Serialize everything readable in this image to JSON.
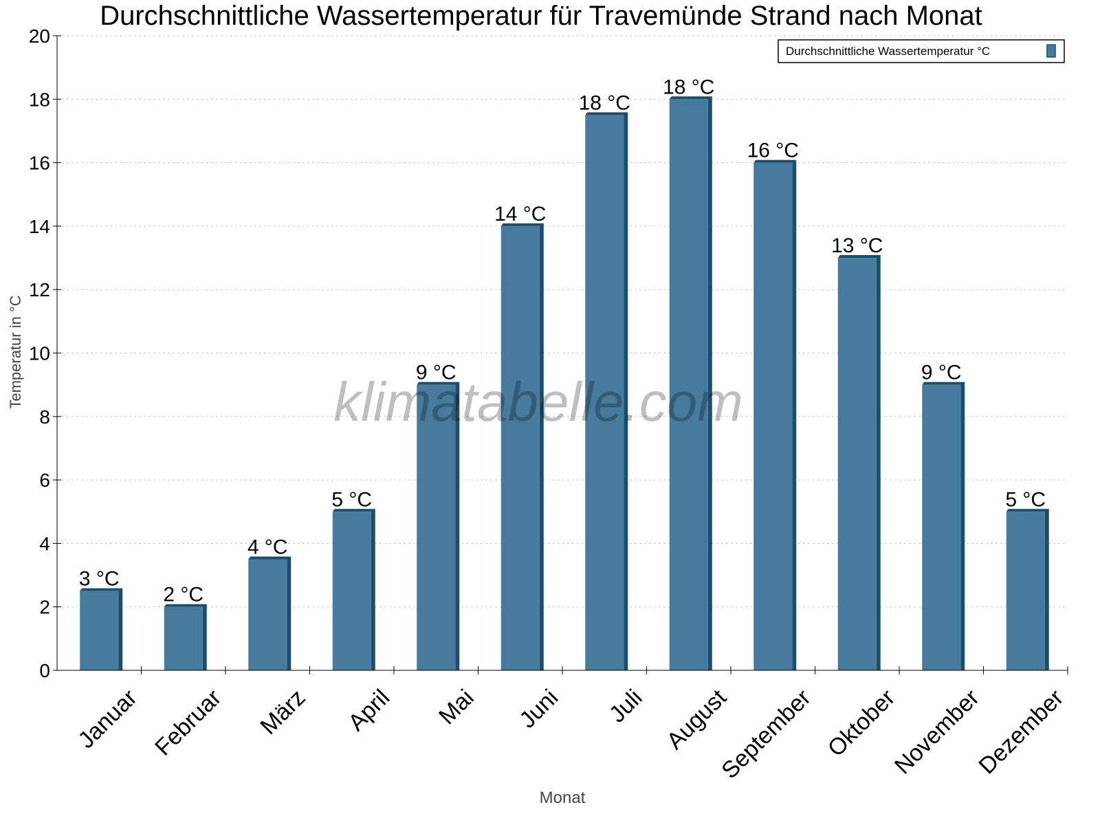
{
  "chart_data": {
    "type": "bar",
    "title": "Durchschnittliche Wassertemperatur für Travemünde Strand nach Monat",
    "xlabel": "Monat",
    "ylabel": "Temperatur in °C",
    "categories": [
      "Januar",
      "Februar",
      "März",
      "April",
      "Mai",
      "Juni",
      "Juli",
      "August",
      "September",
      "Oktober",
      "November",
      "Dezember"
    ],
    "series": [
      {
        "name": "Durchschnittliche Wassertemperatur °C",
        "values": [
          2.5,
          2.0,
          3.5,
          5.0,
          9.0,
          14.0,
          17.5,
          18.0,
          16.0,
          13.0,
          9.0,
          5.0
        ],
        "labels": [
          "3 °C",
          "2 °C",
          "4 °C",
          "5 °C",
          "9 °C",
          "14 °C",
          "18 °C",
          "18 °C",
          "16 °C",
          "13 °C",
          "9 °C",
          "5 °C"
        ]
      }
    ],
    "ylim": [
      0,
      20
    ],
    "yticks": [
      0,
      2,
      4,
      6,
      8,
      10,
      12,
      14,
      16,
      18,
      20
    ],
    "grid": true,
    "legend": "top-right",
    "colors": {
      "bar": "#467b9d",
      "bar_shade": "#1b4e6e",
      "grid": "#c8c8c8"
    },
    "watermark": "klimatabelle.com"
  }
}
